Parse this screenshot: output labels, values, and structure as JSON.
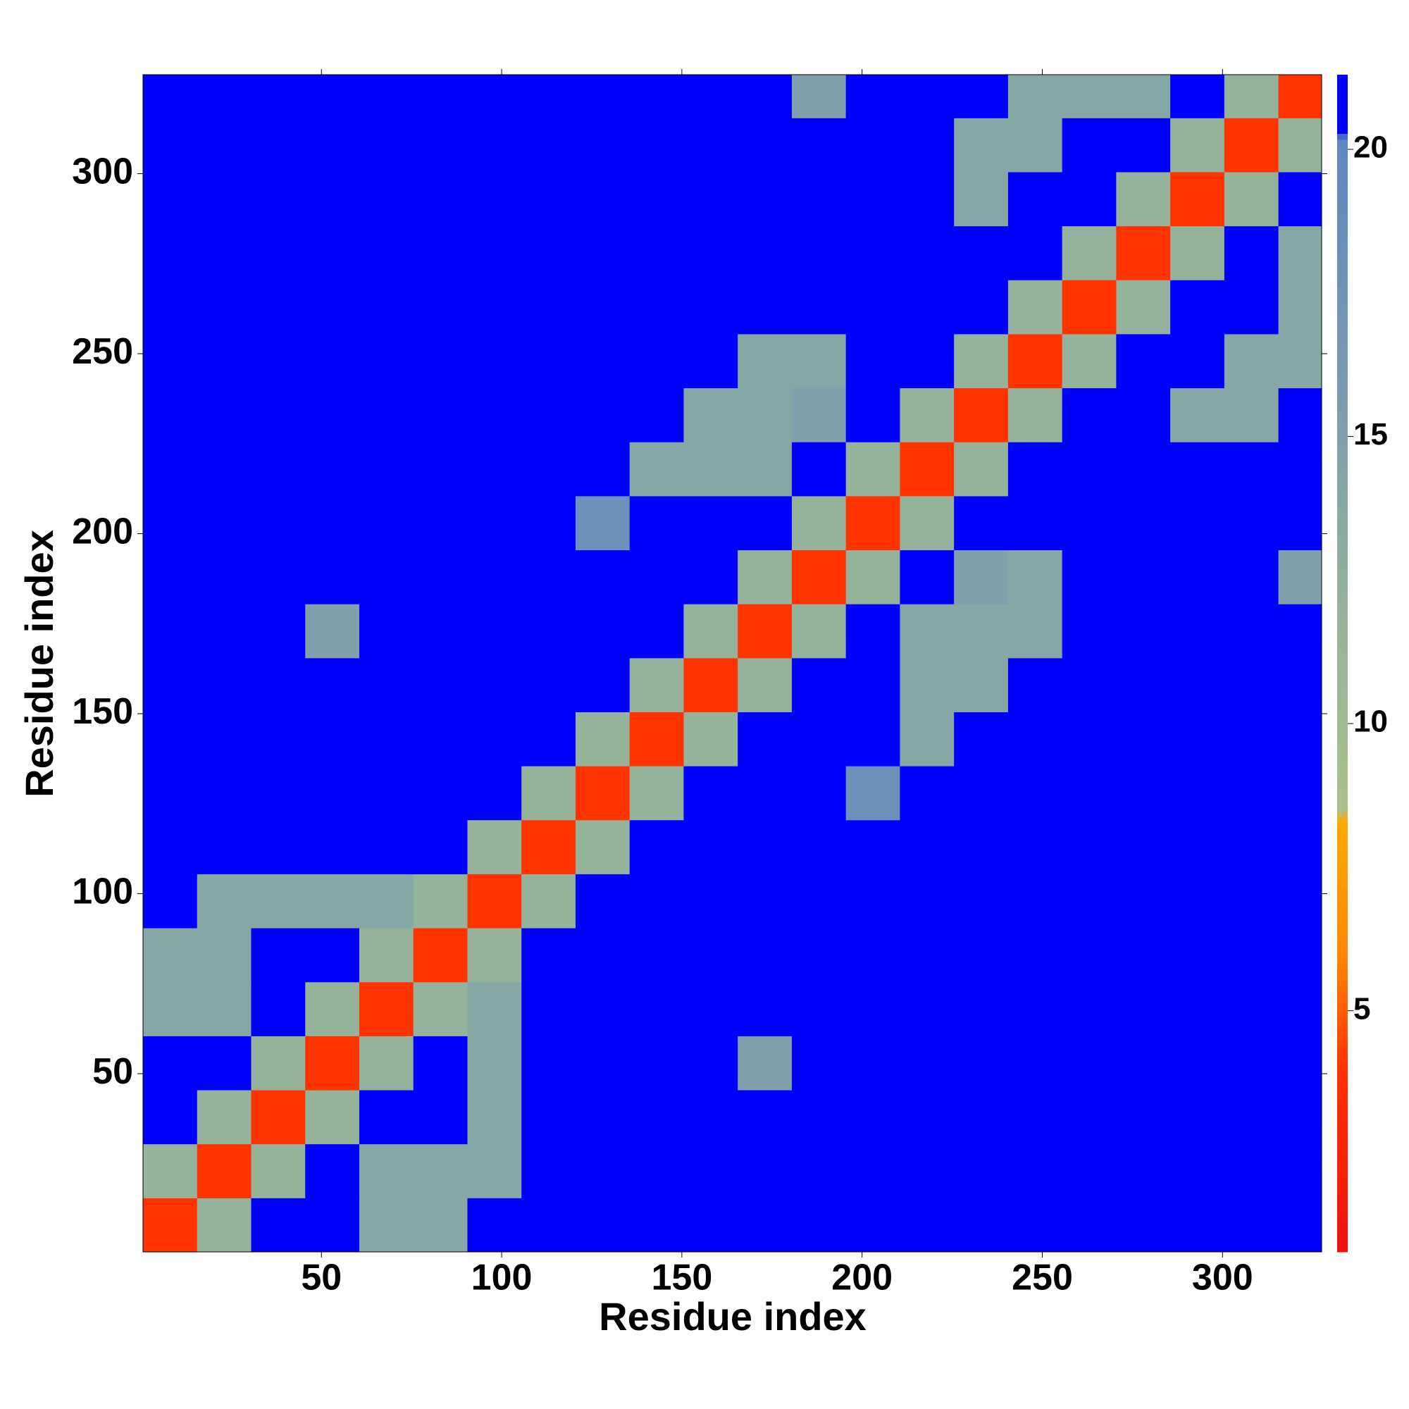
{
  "chart_data": {
    "type": "heatmap",
    "x_label": "Residue index",
    "y_label": "Residue index",
    "xbins": [
      0.5,
      15.5,
      30.5,
      45.5,
      60.5,
      75.5,
      90.5,
      105.5,
      120.5,
      135.5,
      150.5,
      165.5,
      180.5,
      195.5,
      210.5,
      225.5,
      240.5,
      255.5,
      270.5,
      285.5,
      300.5,
      315.5,
      327.5
    ],
    "ybins": [
      0.5,
      15.5,
      30.5,
      45.5,
      60.5,
      75.5,
      90.5,
      105.5,
      120.5,
      135.5,
      150.5,
      165.5,
      180.5,
      195.5,
      210.5,
      225.5,
      240.5,
      255.5,
      270.5,
      285.5,
      300.5,
      315.5,
      327.5
    ],
    "xlim": [
      0.5,
      327.5
    ],
    "ylim": [
      0.5,
      327.5
    ],
    "xticks": [
      50,
      100,
      150,
      200,
      250,
      300
    ],
    "yticks": [
      50,
      100,
      150,
      200,
      250,
      300
    ],
    "clim": [
      0.8,
      21.3
    ],
    "cticks": [
      5,
      10,
      15,
      20
    ],
    "colorscale": [
      [
        0.8,
        "#ee1111"
      ],
      [
        4,
        "#ff3300"
      ],
      [
        6,
        "#ff8800"
      ],
      [
        8.3,
        "#ffaa00"
      ],
      [
        8.5,
        "#a8c08a"
      ],
      [
        12,
        "#94b39a"
      ],
      [
        16,
        "#7a9ab0"
      ],
      [
        20.2,
        "#5f88c0"
      ],
      [
        20.3,
        "#0000ff"
      ],
      [
        21.3,
        "#0000ff"
      ]
    ],
    "z": [
      [
        4,
        12,
        21,
        21,
        14,
        14,
        21,
        21,
        21,
        21,
        21,
        21,
        21,
        21,
        21,
        21,
        21,
        21,
        21,
        21,
        21,
        21
      ],
      [
        12,
        4,
        12,
        21,
        14,
        14,
        14,
        21,
        21,
        21,
        21,
        21,
        21,
        21,
        21,
        21,
        21,
        21,
        21,
        21,
        21,
        21
      ],
      [
        21,
        12,
        4,
        12,
        21,
        21,
        14,
        21,
        21,
        21,
        21,
        21,
        21,
        21,
        21,
        21,
        21,
        21,
        21,
        21,
        21,
        21
      ],
      [
        21,
        21,
        12,
        4,
        12,
        21,
        14,
        21,
        21,
        21,
        21,
        15,
        21,
        21,
        21,
        21,
        21,
        21,
        21,
        21,
        21,
        21
      ],
      [
        14,
        14,
        21,
        12,
        4,
        12,
        14,
        21,
        21,
        21,
        21,
        21,
        21,
        21,
        21,
        21,
        21,
        21,
        21,
        21,
        21,
        21
      ],
      [
        14,
        14,
        21,
        21,
        12,
        4,
        12,
        21,
        21,
        21,
        21,
        21,
        21,
        21,
        21,
        21,
        21,
        21,
        21,
        21,
        21,
        21
      ],
      [
        21,
        14,
        14,
        14,
        14,
        12,
        4,
        12,
        21,
        21,
        21,
        21,
        21,
        21,
        21,
        21,
        21,
        21,
        21,
        21,
        21,
        21
      ],
      [
        21,
        21,
        21,
        21,
        21,
        21,
        12,
        4,
        12,
        21,
        21,
        21,
        21,
        21,
        21,
        21,
        21,
        21,
        21,
        21,
        21,
        21
      ],
      [
        21,
        21,
        21,
        21,
        21,
        21,
        21,
        12,
        4,
        12,
        21,
        21,
        21,
        18,
        21,
        21,
        21,
        21,
        21,
        21,
        21,
        21
      ],
      [
        21,
        21,
        21,
        21,
        21,
        21,
        21,
        21,
        12,
        4,
        12,
        21,
        21,
        21,
        14,
        21,
        21,
        21,
        21,
        21,
        21,
        21
      ],
      [
        21,
        21,
        21,
        21,
        21,
        21,
        21,
        21,
        21,
        12,
        4,
        12,
        21,
        21,
        14,
        14,
        21,
        21,
        21,
        21,
        21,
        21
      ],
      [
        21,
        21,
        21,
        15,
        21,
        21,
        21,
        21,
        21,
        21,
        12,
        4,
        12,
        21,
        14,
        14,
        14,
        21,
        21,
        21,
        21,
        21
      ],
      [
        21,
        21,
        21,
        21,
        21,
        21,
        21,
        21,
        21,
        21,
        21,
        12,
        4,
        12,
        21,
        15,
        14,
        21,
        21,
        21,
        21,
        15
      ],
      [
        21,
        21,
        21,
        21,
        21,
        21,
        21,
        21,
        18,
        21,
        21,
        21,
        12,
        4,
        12,
        21,
        21,
        21,
        21,
        21,
        21,
        21
      ],
      [
        21,
        21,
        21,
        21,
        21,
        21,
        21,
        21,
        21,
        14,
        14,
        14,
        21,
        12,
        4,
        12,
        21,
        21,
        21,
        21,
        21,
        21
      ],
      [
        21,
        21,
        21,
        21,
        21,
        21,
        21,
        21,
        21,
        21,
        14,
        14,
        15,
        21,
        12,
        4,
        12,
        21,
        21,
        14,
        14,
        21
      ],
      [
        21,
        21,
        21,
        21,
        21,
        21,
        21,
        21,
        21,
        21,
        21,
        14,
        14,
        21,
        21,
        12,
        4,
        12,
        21,
        21,
        14,
        14
      ],
      [
        21,
        21,
        21,
        21,
        21,
        21,
        21,
        21,
        21,
        21,
        21,
        21,
        21,
        21,
        21,
        21,
        12,
        4,
        12,
        21,
        21,
        14
      ],
      [
        21,
        21,
        21,
        21,
        21,
        21,
        21,
        21,
        21,
        21,
        21,
        21,
        21,
        21,
        21,
        21,
        21,
        12,
        4,
        12,
        21,
        14
      ],
      [
        21,
        21,
        21,
        21,
        21,
        21,
        21,
        21,
        21,
        21,
        21,
        21,
        21,
        21,
        21,
        14,
        21,
        21,
        12,
        4,
        12,
        21
      ],
      [
        21,
        21,
        21,
        21,
        21,
        21,
        21,
        21,
        21,
        21,
        21,
        21,
        21,
        21,
        21,
        14,
        14,
        21,
        21,
        12,
        4,
        12
      ],
      [
        21,
        21,
        21,
        21,
        21,
        21,
        21,
        21,
        21,
        21,
        21,
        21,
        15,
        21,
        21,
        21,
        14,
        14,
        14,
        21,
        12,
        4
      ]
    ]
  }
}
